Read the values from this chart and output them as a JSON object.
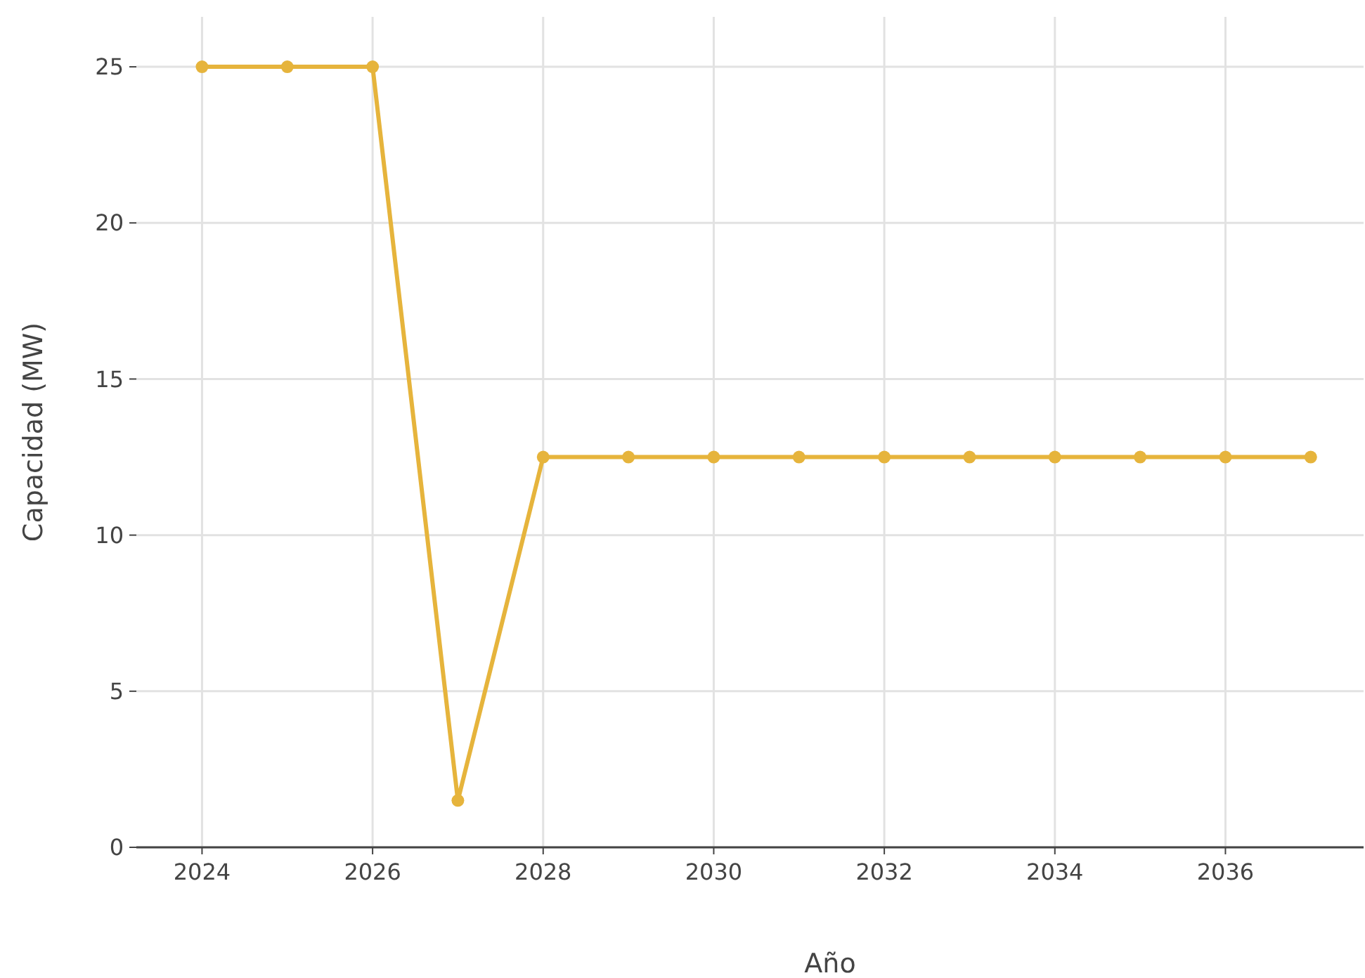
{
  "chart_data": {
    "type": "line",
    "xlabel": "Año",
    "ylabel": "Capacidad (MW)",
    "x": [
      2024,
      2025,
      2026,
      2027,
      2028,
      2029,
      2030,
      2031,
      2032,
      2033,
      2034,
      2035,
      2036,
      2037
    ],
    "series": [
      {
        "color": "#e6b43c",
        "values": [
          25,
          25,
          25,
          1.5,
          12.5,
          12.5,
          12.5,
          12.5,
          12.5,
          12.5,
          12.5,
          12.5,
          12.5,
          12.5
        ]
      }
    ],
    "xlim": [
      2023.23,
      2037.62
    ],
    "xticks": [
      2024,
      2026,
      2028,
      2030,
      2032,
      2034,
      2036
    ],
    "ylim": [
      0,
      26.6
    ],
    "yticks": [
      0,
      5,
      10,
      15,
      20,
      25
    ],
    "grid": true,
    "marker": "circle",
    "line_style": "solid"
  }
}
